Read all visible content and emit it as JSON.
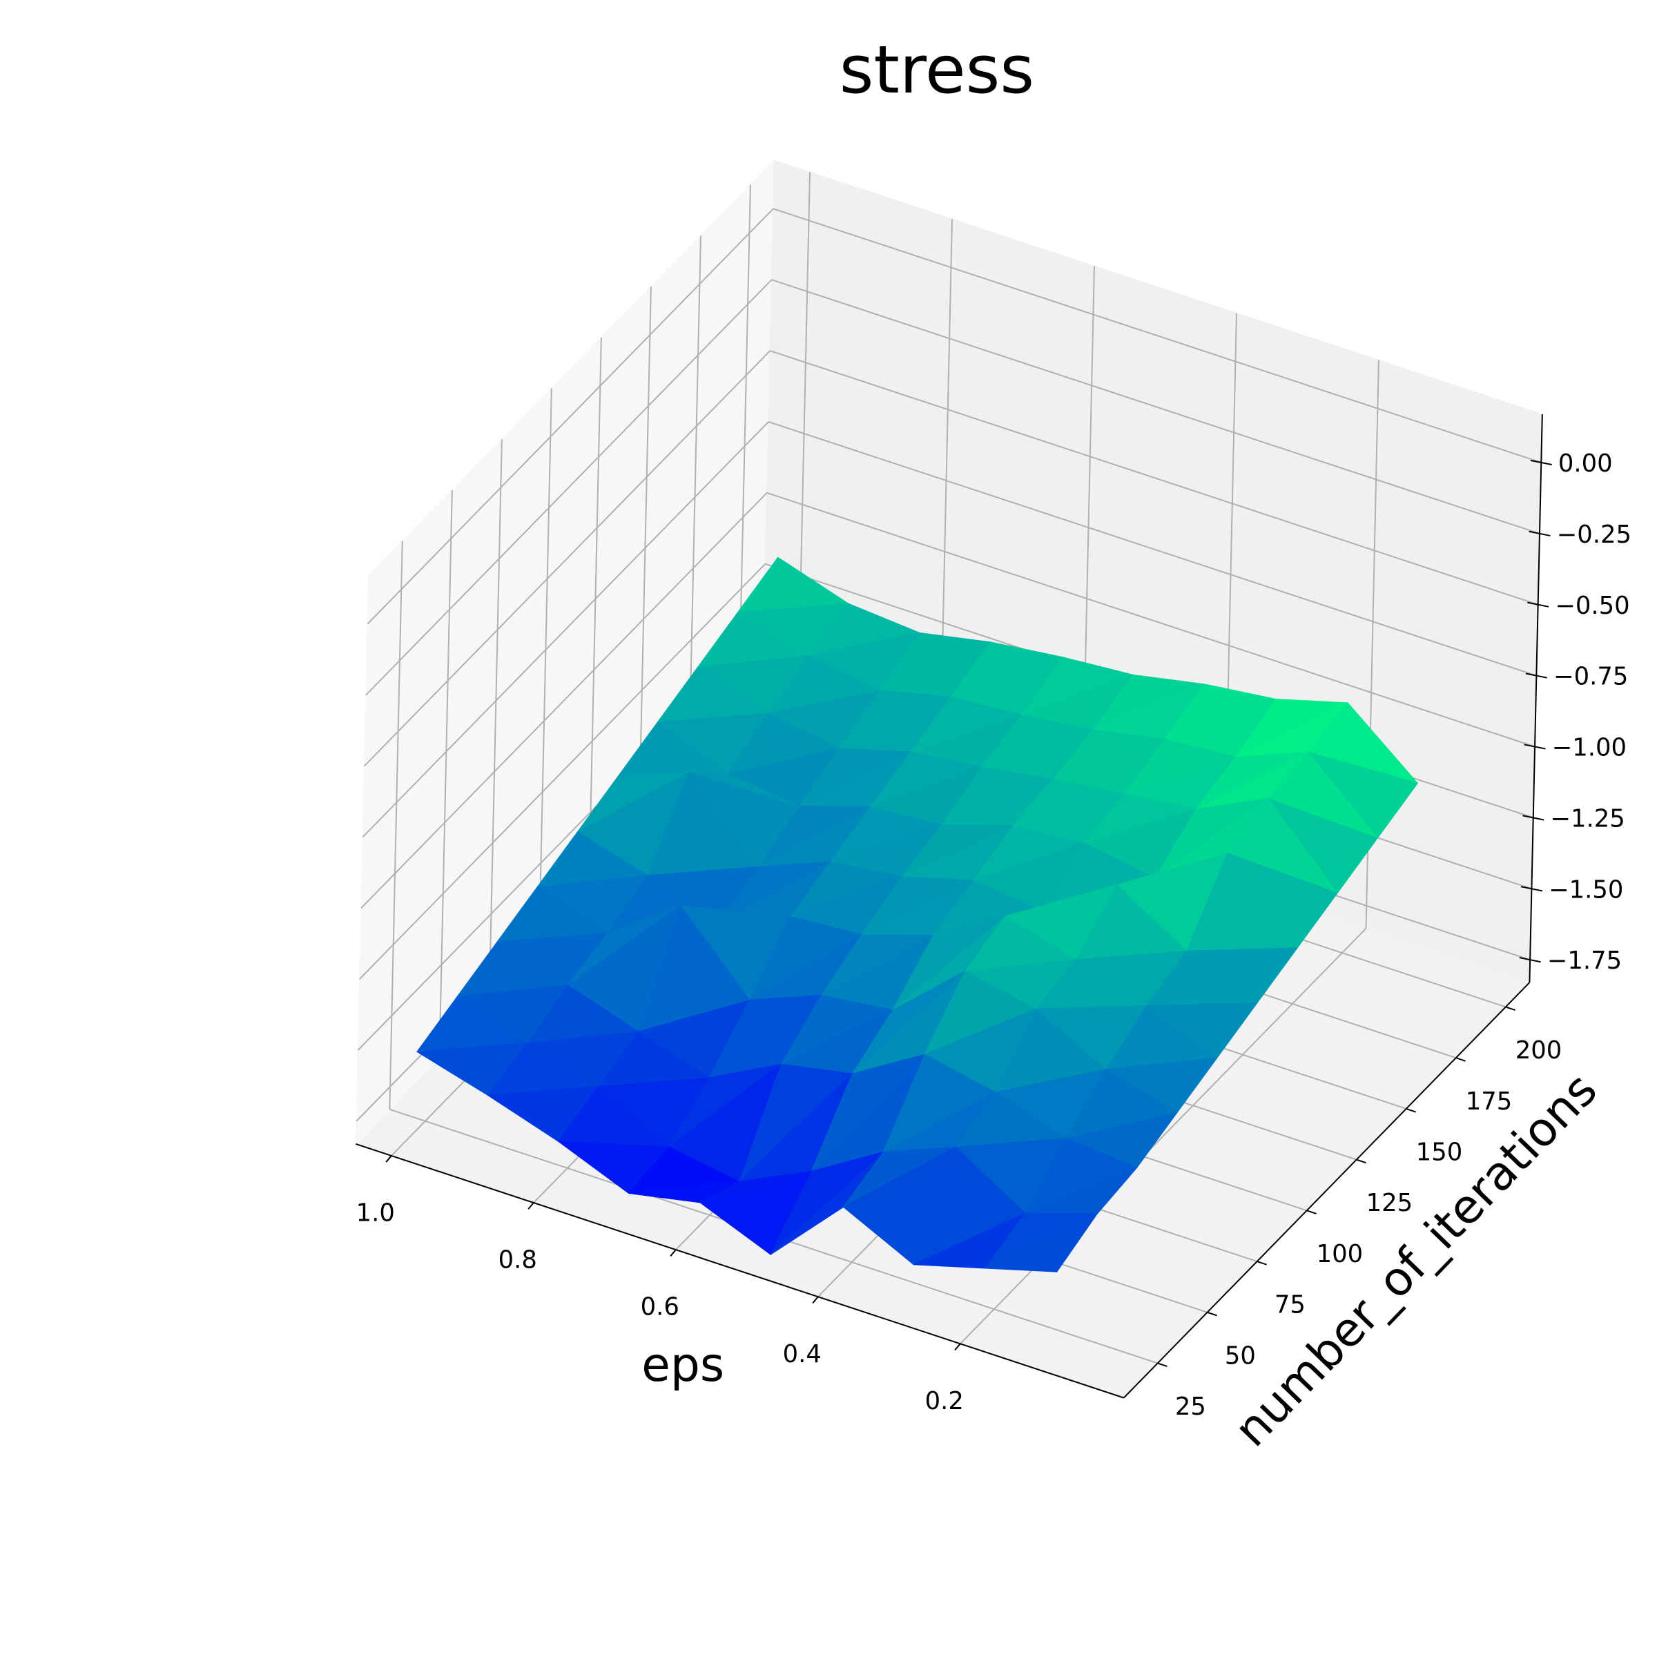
{
  "chart_data": {
    "type": "surface3d",
    "title": "stress",
    "xlabel": "eps",
    "ylabel": "number_of_iterations",
    "colormap": "winter",
    "grid": true,
    "x": [
      1.0,
      0.9,
      0.8,
      0.7,
      0.6,
      0.5,
      0.4,
      0.3,
      0.2,
      0.1
    ],
    "y": [
      20,
      40,
      60,
      80,
      100,
      120,
      140,
      160,
      180,
      200
    ],
    "z": [
      [
        -1.55,
        -1.62,
        -1.7,
        -1.8,
        -1.75,
        -1.85,
        -1.6,
        -1.72,
        -1.65,
        -1.58
      ],
      [
        -1.5,
        -1.58,
        -1.65,
        -1.78,
        -1.82,
        -1.7,
        -1.55,
        -1.45,
        -1.6,
        -1.52
      ],
      [
        -1.45,
        -1.52,
        -1.6,
        -1.68,
        -1.55,
        -1.5,
        -1.35,
        -1.4,
        -1.48,
        -1.5
      ],
      [
        -1.4,
        -1.48,
        -1.3,
        -1.55,
        -1.45,
        -1.42,
        -1.2,
        -1.25,
        -1.38,
        -1.45
      ],
      [
        -1.35,
        -1.42,
        -1.5,
        -1.4,
        -1.38,
        -1.3,
        -1.15,
        -1.22,
        -1.3,
        -1.4
      ],
      [
        -1.3,
        -1.2,
        -1.45,
        -1.35,
        -1.32,
        -1.25,
        -1.28,
        -1.1,
        -1.25,
        -1.35
      ],
      [
        -1.25,
        -1.35,
        -1.38,
        -1.3,
        -1.28,
        -1.2,
        -1.18,
        -1.22,
        -1.05,
        -1.3
      ],
      [
        -1.2,
        -1.28,
        -1.32,
        -1.25,
        -1.22,
        -1.18,
        -1.15,
        -1.12,
        -1.0,
        -1.25
      ],
      [
        -1.15,
        -1.22,
        -1.26,
        -1.2,
        -1.18,
        -1.15,
        -1.1,
        -1.08,
        -0.98,
        -1.2
      ],
      [
        -1.1,
        -1.18,
        -1.2,
        -1.15,
        -1.12,
        -1.1,
        -1.05,
        -1.02,
        -0.95,
        -1.15
      ]
    ],
    "xlim": [
      1.05,
      -0.03
    ],
    "ylim": [
      8,
      212
    ],
    "zlim": [
      -1.83,
      0.17
    ],
    "xticks": [
      {
        "value": 1.0,
        "label": "1.0"
      },
      0.8,
      0.6,
      0.4,
      0.2
    ],
    "yticks": [
      25,
      50,
      75,
      100,
      125,
      150,
      175,
      200
    ],
    "zticks": [
      {
        "value": 0,
        "label": "0.00"
      },
      {
        "value": -0.25,
        "label": "−0.25"
      },
      {
        "value": -0.5,
        "label": "−0.50"
      },
      {
        "value": -0.75,
        "label": "−0.75"
      },
      {
        "value": -1,
        "label": "−1.00"
      },
      {
        "value": -1.25,
        "label": "−1.25"
      },
      {
        "value": -1.5,
        "label": "−1.50"
      },
      {
        "value": -1.75,
        "label": "−1.75"
      }
    ]
  }
}
